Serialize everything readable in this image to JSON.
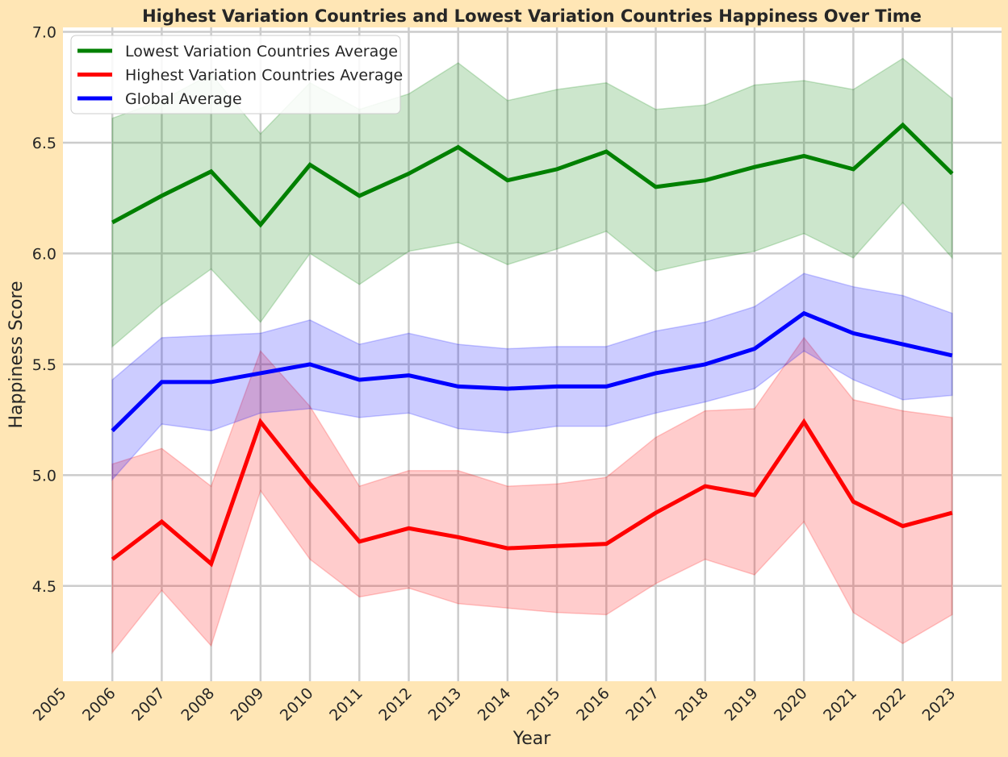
{
  "chart_data": {
    "type": "line",
    "title": "Highest Variation Countries and Lowest Variation Countries Happiness Over Time",
    "xlabel": "Year",
    "ylabel": "Happiness Score",
    "xlim": [
      2005,
      2024
    ],
    "ylim": [
      4.07,
      7.02
    ],
    "xticks": [
      "2005",
      "2006",
      "2007",
      "2008",
      "2009",
      "2010",
      "2011",
      "2012",
      "2013",
      "2014",
      "2015",
      "2016",
      "2017",
      "2018",
      "2019",
      "2020",
      "2021",
      "2022",
      "2023"
    ],
    "yticks": [
      "4.5",
      "5.0",
      "5.5",
      "6.0",
      "6.5",
      "7.0"
    ],
    "x": [
      2006,
      2007,
      2008,
      2009,
      2010,
      2011,
      2012,
      2013,
      2014,
      2015,
      2016,
      2017,
      2018,
      2019,
      2020,
      2021,
      2022,
      2023
    ],
    "grid": true,
    "legend_position": "upper left",
    "series": [
      {
        "name": "Lowest Variation Countries Average",
        "color": "#008000",
        "values": [
          6.14,
          6.26,
          6.37,
          6.13,
          6.4,
          6.26,
          6.36,
          6.48,
          6.33,
          6.38,
          6.46,
          6.3,
          6.33,
          6.39,
          6.44,
          6.38,
          6.58,
          6.36
        ],
        "lower": [
          5.58,
          5.77,
          5.93,
          5.69,
          6.0,
          5.86,
          6.01,
          6.05,
          5.95,
          6.02,
          6.1,
          5.92,
          5.97,
          6.01,
          6.09,
          5.98,
          6.23,
          5.98
        ],
        "upper": [
          6.61,
          6.69,
          6.81,
          6.54,
          6.77,
          6.65,
          6.72,
          6.86,
          6.69,
          6.74,
          6.77,
          6.65,
          6.67,
          6.76,
          6.78,
          6.74,
          6.88,
          6.7
        ]
      },
      {
        "name": "Highest Variation Countries Average",
        "color": "#ff0000",
        "values": [
          4.62,
          4.79,
          4.6,
          5.24,
          4.96,
          4.7,
          4.76,
          4.72,
          4.67,
          4.68,
          4.69,
          4.83,
          4.95,
          4.91,
          5.24,
          4.88,
          4.77,
          4.83
        ],
        "lower": [
          4.2,
          4.48,
          4.23,
          4.93,
          4.62,
          4.45,
          4.49,
          4.42,
          4.4,
          4.38,
          4.37,
          4.51,
          4.62,
          4.55,
          4.79,
          4.38,
          4.24,
          4.37
        ],
        "upper": [
          5.05,
          5.12,
          4.95,
          5.56,
          5.31,
          4.95,
          5.02,
          5.02,
          4.95,
          4.96,
          4.99,
          5.17,
          5.29,
          5.3,
          5.62,
          5.34,
          5.29,
          5.26
        ]
      },
      {
        "name": "Global Average",
        "color": "#0000ff",
        "values": [
          5.2,
          5.42,
          5.42,
          5.46,
          5.5,
          5.43,
          5.45,
          5.4,
          5.39,
          5.4,
          5.4,
          5.46,
          5.5,
          5.57,
          5.73,
          5.64,
          5.59,
          5.54
        ],
        "lower": [
          4.98,
          5.23,
          5.2,
          5.28,
          5.3,
          5.26,
          5.28,
          5.21,
          5.19,
          5.22,
          5.22,
          5.28,
          5.33,
          5.39,
          5.56,
          5.43,
          5.34,
          5.36
        ],
        "upper": [
          5.43,
          5.62,
          5.63,
          5.64,
          5.7,
          5.59,
          5.64,
          5.59,
          5.57,
          5.58,
          5.58,
          5.65,
          5.69,
          5.76,
          5.91,
          5.85,
          5.81,
          5.73
        ]
      }
    ]
  }
}
